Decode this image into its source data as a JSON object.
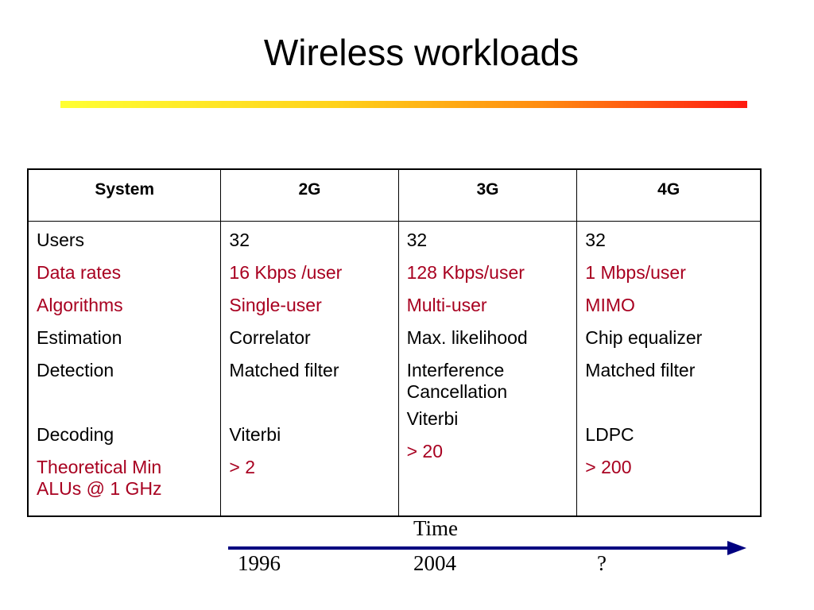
{
  "slide": {
    "title": "Wireless workloads",
    "title_bar_colors": [
      "#ffff33",
      "#ffd21a",
      "#ff8c10",
      "#ff1a10"
    ]
  },
  "table": {
    "headers": [
      "System",
      "2G",
      "3G",
      "4G"
    ],
    "columns": [
      [
        "Users",
        "Data rates",
        "Algorithms",
        "Estimation",
        "Detection",
        "Decoding",
        "Theoretical Min ALUs  @ 1 GHz"
      ],
      [
        "32",
        "16 Kbps /user",
        "Single-user",
        "Correlator",
        "Matched filter",
        "Viterbi",
        "> 2"
      ],
      [
        "32",
        "128 Kbps/user",
        "Multi-user",
        "Max. likelihood",
        "Interference Cancellation",
        "Viterbi",
        "> 20"
      ],
      [
        "32",
        "1 Mbps/user",
        "MIMO",
        "Chip equalizer",
        "Matched filter",
        "LDPC",
        "> 200"
      ]
    ],
    "red_rows": [
      "Data rates",
      "Algorithms",
      "Theoretical Min ALUs  @ 1 GHz"
    ],
    "highlight_color": "#a80020"
  },
  "timeline": {
    "label": "Time",
    "years": [
      "1996",
      "2004",
      "?"
    ]
  }
}
